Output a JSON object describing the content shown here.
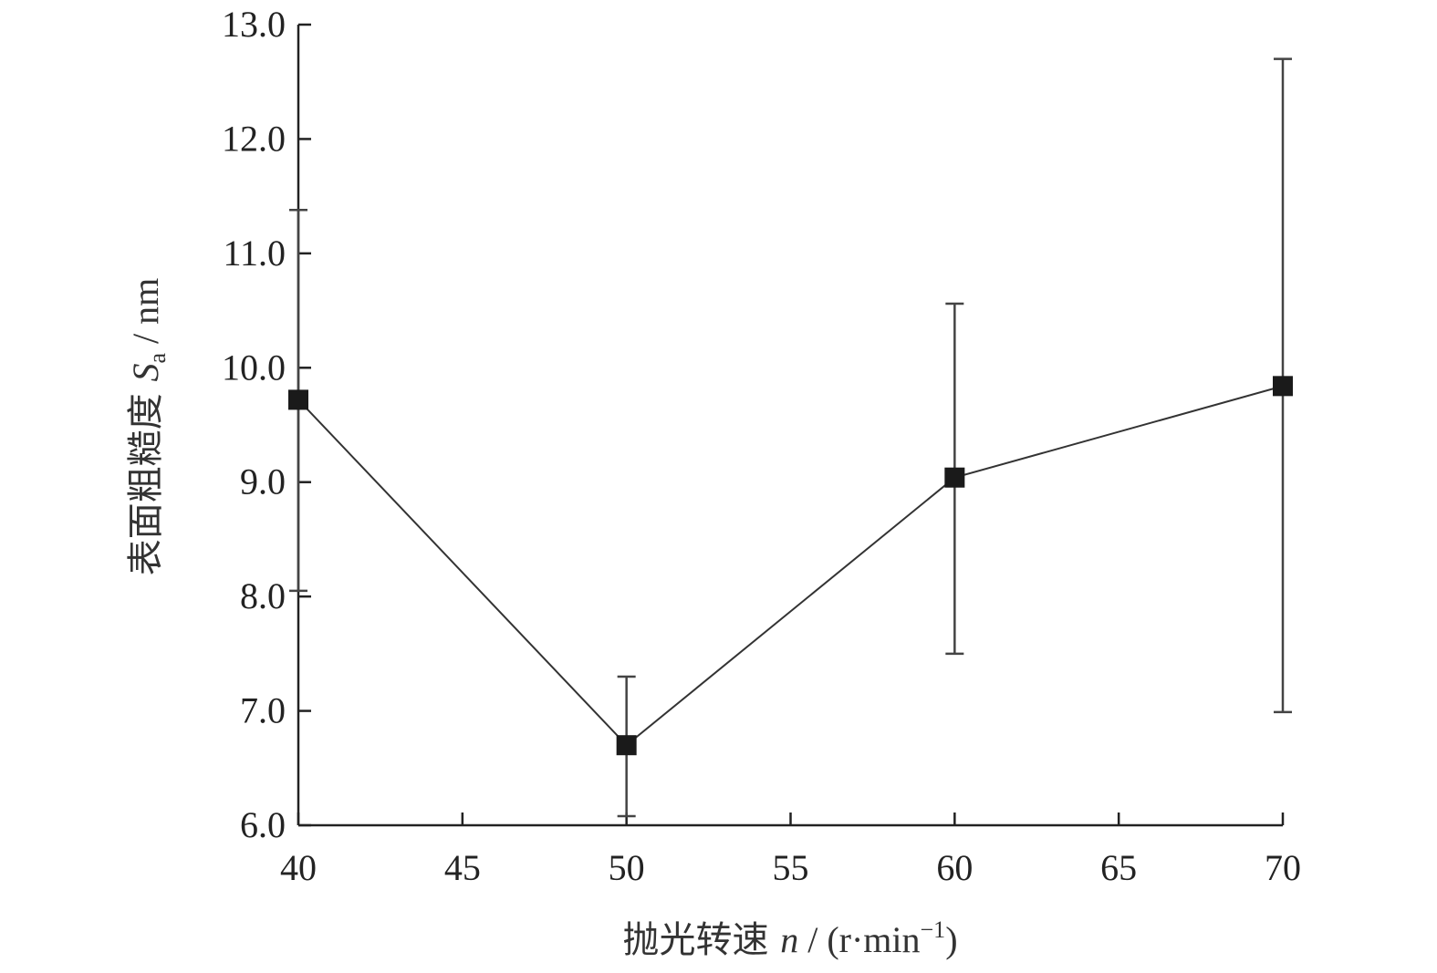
{
  "chart_data": {
    "type": "line",
    "x": [
      40,
      50,
      60,
      70
    ],
    "series": [
      {
        "values": [
          9.72,
          6.7,
          9.04,
          9.84
        ],
        "error_low": [
          8.05,
          6.08,
          7.5,
          6.99
        ],
        "error_high": [
          11.38,
          7.3,
          10.56,
          12.7
        ],
        "color": "#1a1a1a",
        "marker": "square"
      }
    ],
    "xlim": [
      40,
      70
    ],
    "ylim": [
      6.0,
      13.0
    ],
    "xticks": [
      "40",
      "45",
      "50",
      "55",
      "60",
      "65",
      "70"
    ],
    "yticks": [
      "6.0",
      "7.0",
      "8.0",
      "9.0",
      "10.0",
      "11.0",
      "12.0",
      "13.0"
    ],
    "xlabel": {
      "prefix": "抛光转速 ",
      "symbol": "n",
      "unit_open": " / (r·min",
      "unit_sup": "−1",
      "unit_close": ")"
    },
    "ylabel": {
      "prefix": "表面粗糙度 ",
      "symbol": "S",
      "symbol_sub": "a",
      "unit": " / nm"
    },
    "grid": false,
    "legend": "none"
  }
}
